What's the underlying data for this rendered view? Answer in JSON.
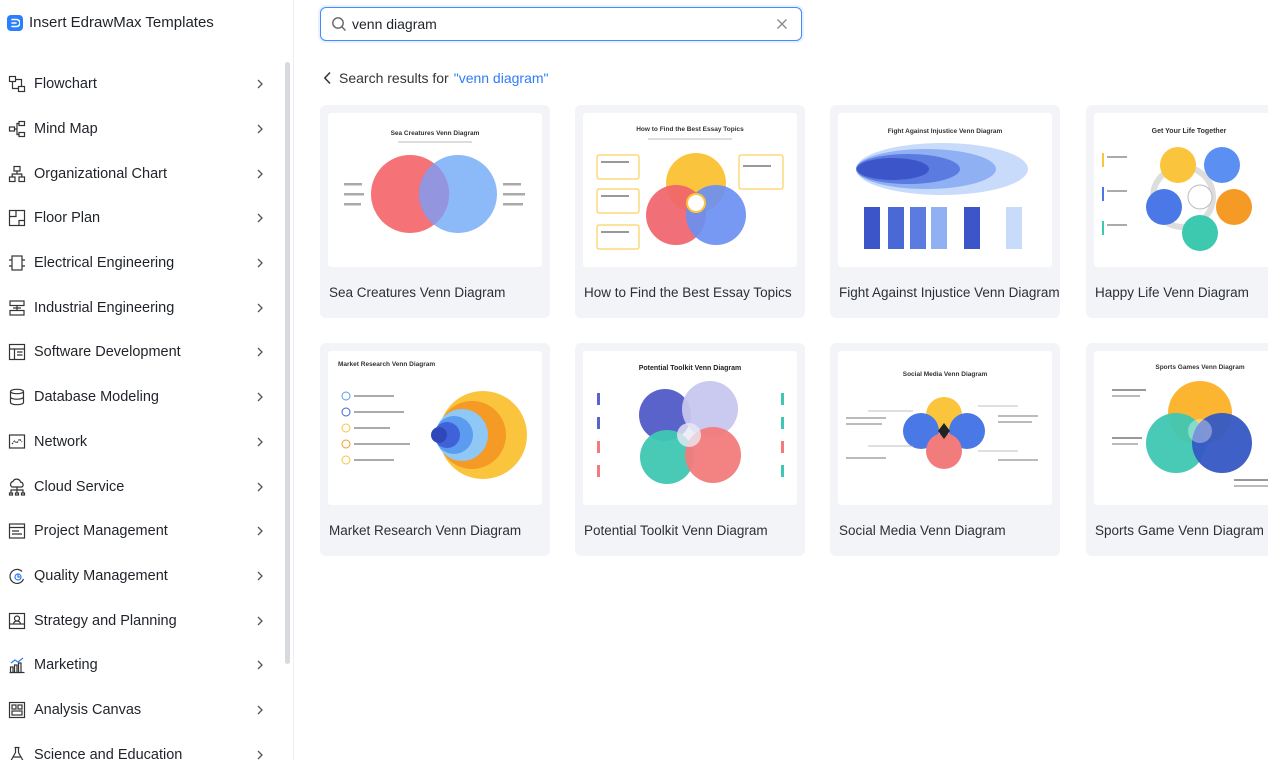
{
  "app": {
    "title": "Insert EdrawMax Templates"
  },
  "sidebar": {
    "items": [
      {
        "label": "Flowchart",
        "icon": "flowchart-icon"
      },
      {
        "label": "Mind Map",
        "icon": "mind-map-icon"
      },
      {
        "label": "Organizational Chart",
        "icon": "org-chart-icon"
      },
      {
        "label": "Floor Plan",
        "icon": "floor-plan-icon"
      },
      {
        "label": "Electrical Engineering",
        "icon": "electrical-icon"
      },
      {
        "label": "Industrial Engineering",
        "icon": "industrial-icon"
      },
      {
        "label": "Software Development",
        "icon": "software-icon"
      },
      {
        "label": "Database Modeling",
        "icon": "database-icon"
      },
      {
        "label": "Network",
        "icon": "network-icon"
      },
      {
        "label": "Cloud Service",
        "icon": "cloud-icon"
      },
      {
        "label": "Project Management",
        "icon": "project-icon"
      },
      {
        "label": "Quality Management",
        "icon": "quality-icon"
      },
      {
        "label": "Strategy and Planning",
        "icon": "strategy-icon"
      },
      {
        "label": "Marketing",
        "icon": "marketing-icon"
      },
      {
        "label": "Analysis Canvas",
        "icon": "analysis-icon"
      },
      {
        "label": "Science and Education",
        "icon": "science-icon"
      }
    ]
  },
  "search": {
    "value": "venn diagram",
    "placeholder": ""
  },
  "results": {
    "prefix": "Search results for",
    "query": "\"venn diagram\""
  },
  "templates": [
    {
      "title": "Sea Creatures Venn Diagram",
      "thumb_title": "Sea Creatures Venn Diagram"
    },
    {
      "title": "How to Find the Best Essay Topics",
      "thumb_title": "How to Find the Best Essay Topics"
    },
    {
      "title": "Fight Against Injustice Venn Diagram",
      "thumb_title": "Fight Against Injustice Venn Diagram"
    },
    {
      "title": "Happy Life Venn Diagram",
      "thumb_title": "Get Your Life Together"
    },
    {
      "title": "Market Research Venn Diagram",
      "thumb_title": "Market Research Venn Diagram"
    },
    {
      "title": "Potential Toolkit Venn Diagram",
      "thumb_title": "Potential Toolkit Venn Diagram"
    },
    {
      "title": "Social Media Venn Diagram",
      "thumb_title": "Social Media Venn Diagram"
    },
    {
      "title": "Sports Game Venn Diagram",
      "thumb_title": "Sports Games Venn Diagram"
    }
  ],
  "colors": {
    "accent": "#2f7cf6",
    "card_bg": "#f3f4f8",
    "text": "#1f2329"
  }
}
